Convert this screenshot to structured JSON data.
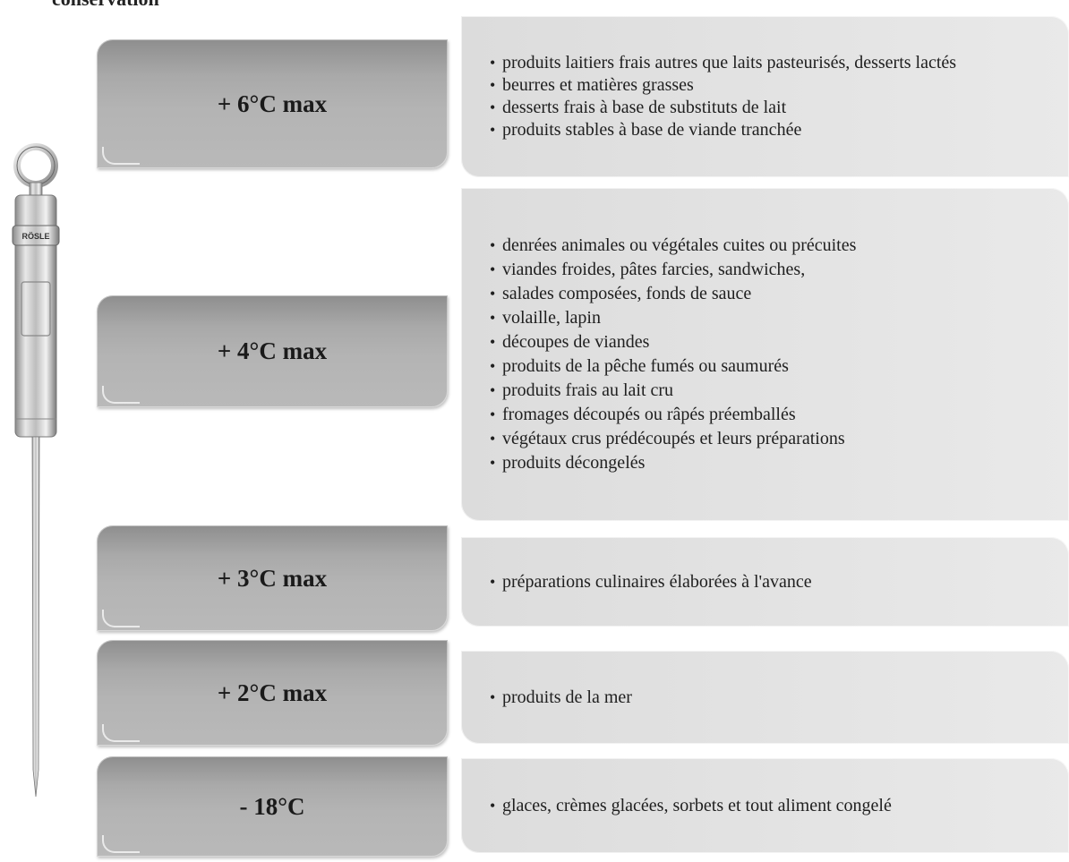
{
  "heading": "conservation",
  "thermometer": {
    "brand": "RÖSLE"
  },
  "zones": [
    {
      "temp": "+ 6°C max",
      "items": [
        "produits laitiers frais autres que laits pasteurisés, desserts lactés",
        "beurres et matières grasses",
        "desserts frais à base de substituts de lait",
        "produits stables à base de viande tranchée"
      ]
    },
    {
      "temp": "+ 4°C max",
      "items": [
        "denrées animales ou végétales cuites ou précuites",
        "viandes froides, pâtes farcies, sandwiches,",
        "salades composées, fonds de sauce",
        "volaille, lapin",
        "découpes de viandes",
        "produits de la pêche fumés ou saumurés",
        "produits frais au lait cru",
        "fromages découpés ou râpés préemballés",
        "végétaux crus prédécoupés et leurs préparations",
        "produits décongelés"
      ]
    },
    {
      "temp": "+ 3°C max",
      "items": [
        "préparations culinaires élaborées à l'avance"
      ]
    },
    {
      "temp": "+ 2°C max",
      "items": [
        "produits de la mer"
      ]
    },
    {
      "temp": "- 18°C",
      "items": [
        "glaces, crèmes glacées, sorbets et tout aliment congelé"
      ]
    }
  ]
}
